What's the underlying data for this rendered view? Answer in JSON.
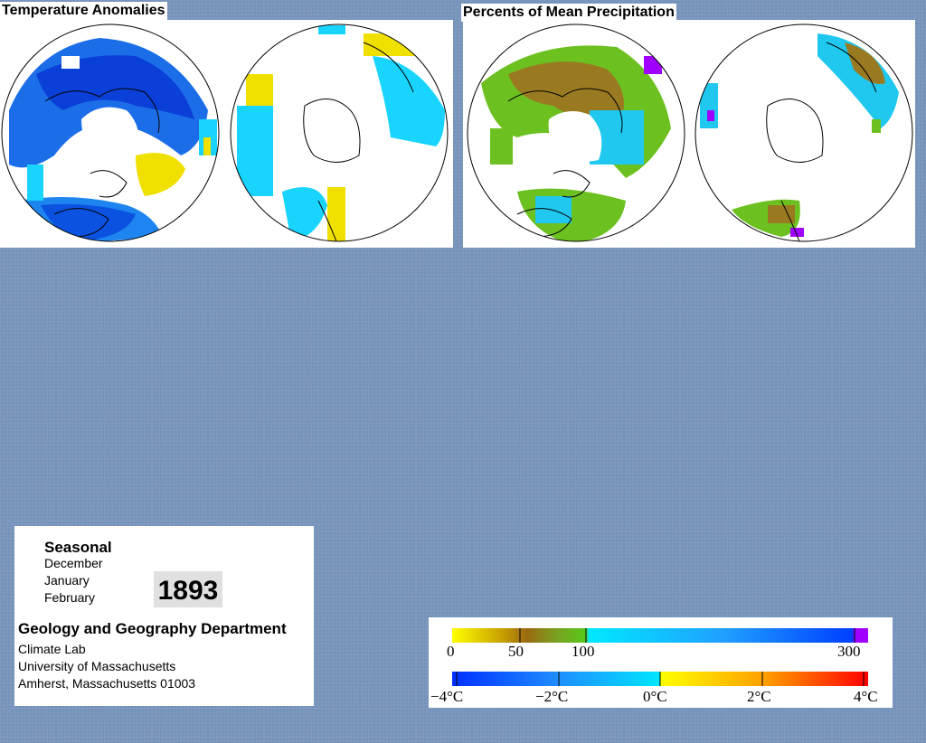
{
  "panels": {
    "temperature": {
      "title": "Temperature Anomalies"
    },
    "precipitation": {
      "title": "Percents of Mean Precipitation"
    }
  },
  "info": {
    "period_label": "Seasonal",
    "months": [
      "December",
      "January",
      "February"
    ],
    "year": "1893",
    "department": "Geology and Geography Department",
    "lab": "Climate Lab",
    "university": "University of Massachusetts",
    "address": "Amherst, Massachusetts 01003"
  },
  "legend": {
    "precipitation_scale": {
      "labels": [
        "0",
        "50",
        "100",
        "300"
      ],
      "colors": [
        "#ffff00",
        "#c8a000",
        "#9a6a10",
        "#58c81a",
        "#00e8ff",
        "#2080ff",
        "#0040ff",
        "#a000ff"
      ]
    },
    "temperature_scale": {
      "labels": [
        "−4°C",
        "−2°C",
        "0°C",
        "2°C",
        "4°C"
      ],
      "colors": [
        "#0030ff",
        "#1e8cff",
        "#00e6ff",
        "#ffff00",
        "#ffa000",
        "#ff4000",
        "#ff0000"
      ]
    }
  },
  "map_colors": {
    "strong_cold": "#1040e8",
    "cold": "#2a8cf0",
    "cool": "#18d4ff",
    "warm": "#f0e000",
    "dry": "#9a7a20",
    "moderate": "#6cc020",
    "wet": "#20c8f0",
    "very_wet": "#a000ff"
  }
}
